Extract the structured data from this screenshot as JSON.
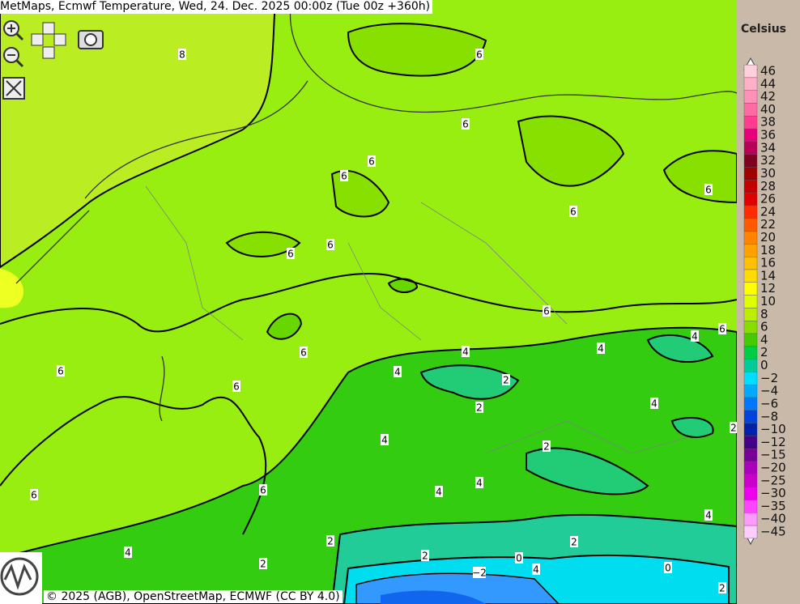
{
  "header": {
    "title": "MetMaps, Ecmwf Temperature, Wed, 24. Dec. 2025 00:00z (Tue 00z +360h)"
  },
  "legend": {
    "unit": "Celsius",
    "entries": [
      {
        "label": "46",
        "color": "#ffd0dc"
      },
      {
        "label": "44",
        "color": "#ffb0c8"
      },
      {
        "label": "42",
        "color": "#ff90b8"
      },
      {
        "label": "40",
        "color": "#ff6aa4"
      },
      {
        "label": "38",
        "color": "#ff3c90"
      },
      {
        "label": "36",
        "color": "#e8007a"
      },
      {
        "label": "34",
        "color": "#b80058"
      },
      {
        "label": "32",
        "color": "#800020"
      },
      {
        "label": "30",
        "color": "#a00000"
      },
      {
        "label": "28",
        "color": "#c40000"
      },
      {
        "label": "26",
        "color": "#e00000"
      },
      {
        "label": "24",
        "color": "#ff2c00"
      },
      {
        "label": "22",
        "color": "#ff5a00"
      },
      {
        "label": "20",
        "color": "#ff8400"
      },
      {
        "label": "18",
        "color": "#ffa200"
      },
      {
        "label": "16",
        "color": "#ffc000"
      },
      {
        "label": "14",
        "color": "#ffdc00"
      },
      {
        "label": "12",
        "color": "#ffff00"
      },
      {
        "label": "10",
        "color": "#ddff00"
      },
      {
        "label": "8",
        "color": "#bbee00"
      },
      {
        "label": "6",
        "color": "#88dd00"
      },
      {
        "label": "4",
        "color": "#44cc00"
      },
      {
        "label": "2",
        "color": "#00cc44"
      },
      {
        "label": "0",
        "color": "#00cc99"
      },
      {
        "label": "−2",
        "color": "#00ddff"
      },
      {
        "label": "−4",
        "color": "#00aaff"
      },
      {
        "label": "−6",
        "color": "#0077ff"
      },
      {
        "label": "−8",
        "color": "#0044dd"
      },
      {
        "label": "−10",
        "color": "#0022aa"
      },
      {
        "label": "−12",
        "color": "#440088"
      },
      {
        "label": "−15",
        "color": "#770099"
      },
      {
        "label": "−20",
        "color": "#aa00bb"
      },
      {
        "label": "−25",
        "color": "#cc00cc"
      },
      {
        "label": "−30",
        "color": "#ee00ee"
      },
      {
        "label": "−35",
        "color": "#ff44ff"
      },
      {
        "label": "−40",
        "color": "#ff99ff"
      },
      {
        "label": "−45",
        "color": "#ffccff"
      }
    ]
  },
  "contour_labels": [
    "8",
    "6",
    "6",
    "6",
    "6",
    "6",
    "6",
    "6",
    "6",
    "6",
    "6",
    "4",
    "4",
    "6",
    "4",
    "6",
    "4",
    "2",
    "6",
    "4",
    "2",
    "2",
    "4",
    "2",
    "4",
    "4",
    "6",
    "6",
    "4",
    "2",
    "2",
    "4",
    "2",
    "0",
    "2",
    "0",
    "4",
    "−2",
    "2"
  ],
  "footer": {
    "copyright": "© 2025 (AGB), OpenStreetMap, ECMWF (CC BY 4.0)"
  }
}
